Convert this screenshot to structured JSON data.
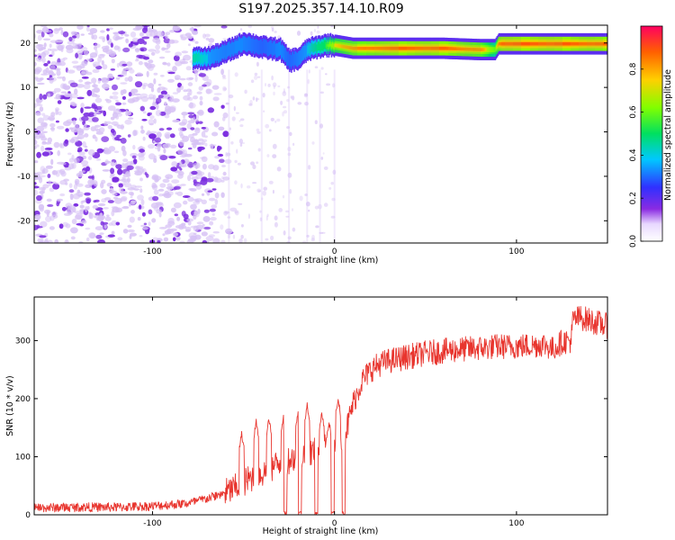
{
  "title": "S197.2025.357.14.10.R09",
  "colors": {
    "snr_line": "#e8352e",
    "spectrogram_noise": "#7b2ee0",
    "spectrogram_noise_light": "#d7c2f5",
    "frame": "#000000"
  },
  "chart_data": [
    {
      "type": "heatmap",
      "title": "S197.2025.357.14.10.R09",
      "xlabel": "Height of straight line (km)",
      "ylabel": "Frequency (Hz)",
      "xlim": [
        -165,
        150
      ],
      "ylim": [
        -25,
        24
      ],
      "xticks": [
        -100,
        0,
        100
      ],
      "xtick_labels": [
        "-100",
        "0",
        "100"
      ],
      "yticks": [
        -20,
        -10,
        0,
        10,
        20
      ],
      "ytick_labels": [
        "-20",
        "-10",
        "0",
        "10",
        "20"
      ],
      "grid": false,
      "colorbar": {
        "label": "Normalized spectral amplitude",
        "range": [
          0,
          1
        ],
        "ticks": [
          0.0,
          0.2,
          0.4,
          0.6,
          0.8
        ],
        "tick_labels": [
          "0.0",
          "0.2",
          "0.4",
          "0.6",
          "0.8"
        ]
      },
      "ridge": {
        "description_points_x": [
          -78,
          -70,
          -60,
          -50,
          -40,
          -30,
          -25,
          -20,
          -15,
          -10,
          -5,
          0,
          10,
          30,
          60,
          80,
          88,
          90,
          92,
          120,
          150
        ],
        "frequency_hz": [
          16.5,
          16.5,
          18,
          20,
          19,
          18.5,
          16,
          16.5,
          18.5,
          19,
          19.5,
          19.5,
          18.8,
          18.8,
          18.8,
          18.5,
          18.5,
          19.8,
          19.8,
          19.8,
          19.8
        ],
        "peak_amplitude": [
          0.45,
          0.4,
          0.35,
          0.35,
          0.3,
          0.35,
          0.3,
          0.35,
          0.4,
          0.5,
          0.55,
          0.75,
          0.85,
          0.95,
          0.95,
          0.85,
          0.6,
          0.9,
          0.98,
          0.98,
          0.95
        ]
      },
      "noise_region_xlim": [
        -165,
        -60
      ]
    },
    {
      "type": "line",
      "xlabel": "Height of straight line (km)",
      "ylabel": "SNR (10 * v/v)",
      "xlim": [
        -165,
        150
      ],
      "ylim": [
        0,
        375
      ],
      "xticks": [
        -100,
        0,
        100
      ],
      "xtick_labels": [
        "-100",
        "0",
        "100"
      ],
      "yticks": [
        0,
        100,
        200,
        300
      ],
      "ytick_labels": [
        "0",
        "100",
        "200",
        "300"
      ],
      "grid": false,
      "series": [
        {
          "x": [
            -165,
            -140,
            -120,
            -100,
            -80,
            -70,
            -60,
            -55,
            -50,
            -45,
            -40,
            -35,
            -30,
            -25,
            -20,
            -15,
            -10,
            -5,
            0,
            4,
            7,
            10,
            15,
            20,
            25,
            30,
            40,
            50,
            60,
            70,
            80,
            90,
            100,
            110,
            115,
            120,
            125,
            130,
            131,
            135,
            140,
            145,
            150
          ],
          "values": [
            12,
            13,
            13,
            15,
            20,
            28,
            38,
            45,
            55,
            65,
            70,
            80,
            90,
            95,
            100,
            105,
            110,
            115,
            120,
            130,
            150,
            190,
            230,
            250,
            260,
            265,
            272,
            278,
            282,
            285,
            287,
            290,
            290,
            292,
            294,
            285,
            298,
            300,
            335,
            340,
            335,
            330,
            325
          ]
        }
      ],
      "spikes": [
        {
          "x": -51,
          "value": 140
        },
        {
          "x": -43,
          "value": 160
        },
        {
          "x": -36,
          "value": 165
        },
        {
          "x": -28,
          "value": 170
        },
        {
          "x": -20,
          "value": 175
        },
        {
          "x": -15,
          "value": 190
        },
        {
          "x": -7,
          "value": 175
        },
        {
          "x": -3,
          "value": 160
        },
        {
          "x": 2,
          "value": 200
        }
      ],
      "dropouts": [
        {
          "x": -27,
          "value": 0
        },
        {
          "x": -19,
          "value": 0
        },
        {
          "x": -10,
          "value": 0
        },
        {
          "x": -1,
          "value": 0
        },
        {
          "x": 5,
          "value": 0
        }
      ]
    }
  ]
}
